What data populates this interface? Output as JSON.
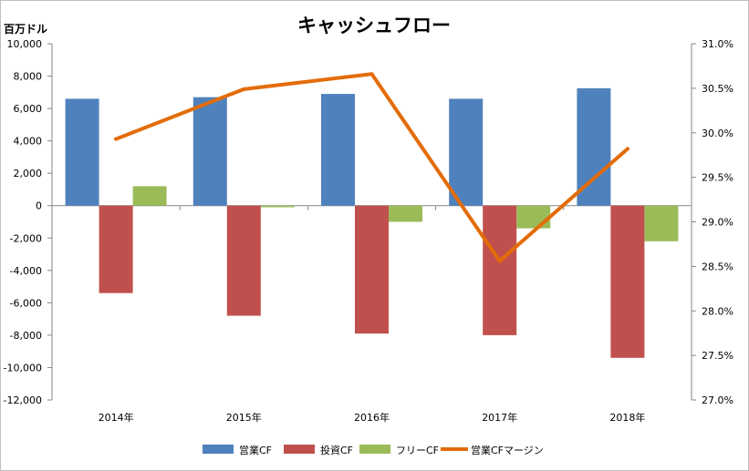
{
  "chart_data": {
    "type": "bar+line",
    "title": "キャッシュフロー",
    "y_unit_label": "百万ドル",
    "categories": [
      "2014年",
      "2015年",
      "2016年",
      "2017年",
      "2018年"
    ],
    "y_left": {
      "min": -12000,
      "max": 10000,
      "step": 2000,
      "tick_labels": [
        "10,000",
        "8,000",
        "6,000",
        "4,000",
        "2,000",
        "0",
        "-2,000",
        "-4,000",
        "-6,000",
        "-8,000",
        "-10,000",
        "-12,000"
      ]
    },
    "y_right": {
      "min": 27.0,
      "max": 31.0,
      "step": 0.5,
      "tick_labels": [
        "31.0%",
        "30.5%",
        "30.0%",
        "29.5%",
        "29.0%",
        "28.5%",
        "28.0%",
        "27.5%",
        "27.0%"
      ]
    },
    "series": [
      {
        "name": "営業CF",
        "type": "bar",
        "axis": "left",
        "color": "#4f81bd",
        "values": [
          6600,
          6700,
          6900,
          6600,
          7250
        ]
      },
      {
        "name": "投資CF",
        "type": "bar",
        "axis": "left",
        "color": "#c0504d",
        "values": [
          -5400,
          -6800,
          -7900,
          -8000,
          -9400
        ]
      },
      {
        "name": "フリーCF",
        "type": "bar",
        "axis": "left",
        "color": "#9bbb59",
        "values": [
          1200,
          -100,
          -1000,
          -1400,
          -2200
        ]
      },
      {
        "name": "営業CFマージン",
        "type": "line",
        "axis": "right",
        "color": "#e36c09",
        "values": [
          29.93,
          30.49,
          30.66,
          28.56,
          29.82
        ]
      }
    ],
    "negative_tick_color": "#ff0000",
    "grid": false,
    "legend_position": "bottom"
  }
}
